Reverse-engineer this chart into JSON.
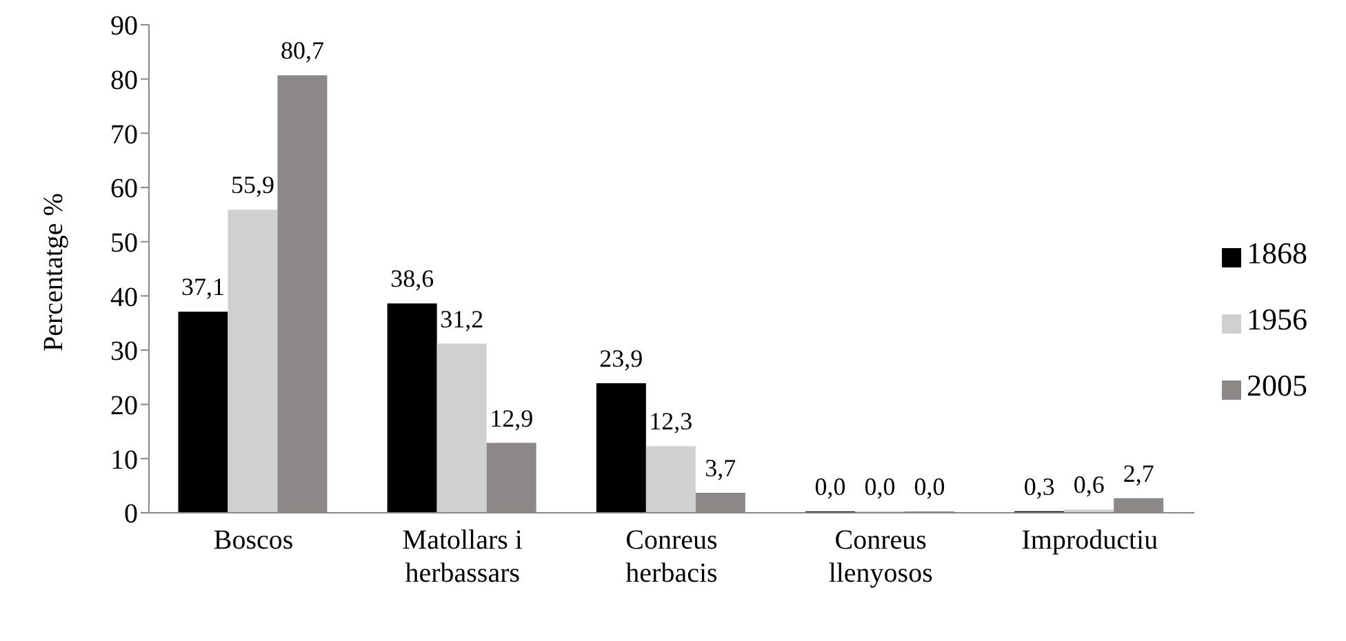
{
  "chart_data": {
    "type": "bar",
    "ylabel": "Percentatge %",
    "categories": [
      "Boscos",
      "Matollars i herbassars",
      "Conreus herbacis",
      "Conreus llenyosos",
      "Improductiu"
    ],
    "series": [
      {
        "name": "1868",
        "color": "#000000",
        "values": [
          37.1,
          38.6,
          23.9,
          0.0,
          0.3
        ],
        "value_labels": [
          "37,1",
          "38,6",
          "23,9",
          "0,0",
          "0,3"
        ]
      },
      {
        "name": "1956",
        "color": "#d0d0d0",
        "values": [
          55.9,
          31.2,
          12.3,
          0.0,
          0.6
        ],
        "value_labels": [
          "55,9",
          "31,2",
          "12,3",
          "0,0",
          "0,6"
        ]
      },
      {
        "name": "2005",
        "color": "#8c8888",
        "values": [
          80.7,
          12.9,
          3.7,
          0.0,
          2.7
        ],
        "value_labels": [
          "80,7",
          "12,9",
          "3,7",
          "0,0",
          "2,7"
        ]
      }
    ],
    "ylim": [
      0,
      90
    ],
    "yticks": [
      0,
      10,
      20,
      30,
      40,
      50,
      60,
      70,
      80,
      90
    ],
    "grid": false,
    "legend": "right"
  }
}
